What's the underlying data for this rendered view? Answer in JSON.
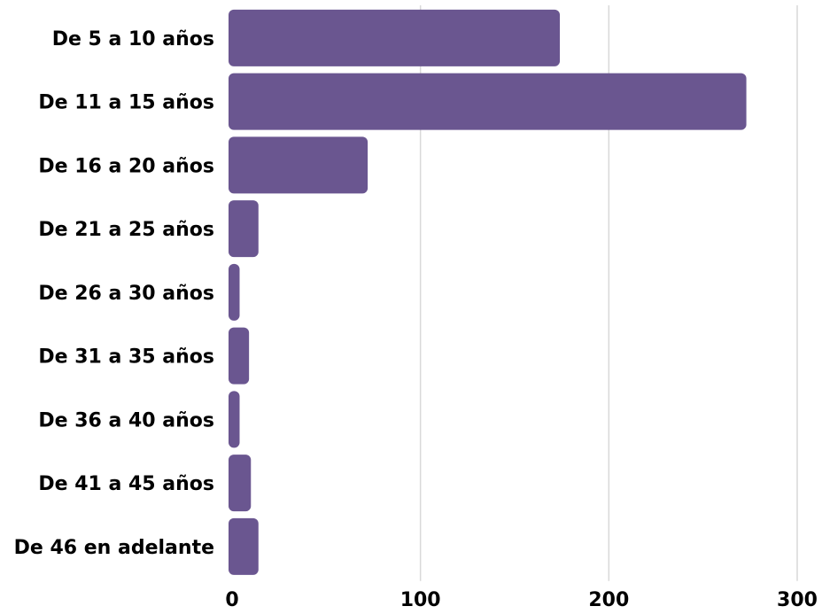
{
  "chart_data": {
    "type": "bar",
    "orientation": "horizontal",
    "categories": [
      "De 5 a 10 años",
      "De 11 a 15 años",
      "De 16 a 20 años",
      "De 21 a 25 años",
      "De 26 a 30 años",
      "De 31 a 35 años",
      "De 36 a 40 años",
      "De 41 a 45 años",
      "De 46 en adelante"
    ],
    "values": [
      174,
      273,
      72,
      14,
      4,
      9,
      4,
      10,
      14
    ],
    "xlim": [
      0,
      300
    ],
    "xticks": [
      "0",
      "100",
      "200",
      "300"
    ],
    "grid": true,
    "bar_color": "#6a5690",
    "grid_color": "#d9d9d9"
  }
}
